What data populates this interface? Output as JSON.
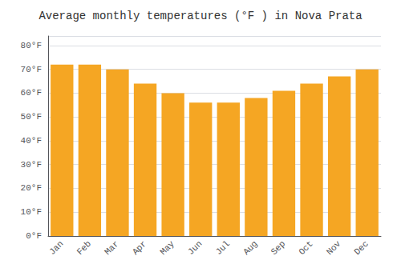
{
  "chart_data": {
    "type": "bar",
    "title": "Average monthly temperatures (°F ) in Nova Prata",
    "categories": [
      "Jan",
      "Feb",
      "Mar",
      "Apr",
      "May",
      "Jun",
      "Jul",
      "Aug",
      "Sep",
      "Oct",
      "Nov",
      "Dec"
    ],
    "values": [
      72,
      72,
      70,
      64,
      60,
      56,
      56,
      58,
      61,
      64,
      67,
      70
    ],
    "color": "#F5A623",
    "ylim": [
      0,
      84
    ],
    "yticks": [
      {
        "value": 0,
        "label": "0°F"
      },
      {
        "value": 10,
        "label": "10°F"
      },
      {
        "value": 20,
        "label": "20°F"
      },
      {
        "value": 30,
        "label": "30°F"
      },
      {
        "value": 40,
        "label": "40°F"
      },
      {
        "value": 50,
        "label": "50°F"
      },
      {
        "value": 60,
        "label": "60°F"
      },
      {
        "value": 70,
        "label": "70°F"
      },
      {
        "value": 80,
        "label": "80°F"
      }
    ],
    "grid": true
  }
}
